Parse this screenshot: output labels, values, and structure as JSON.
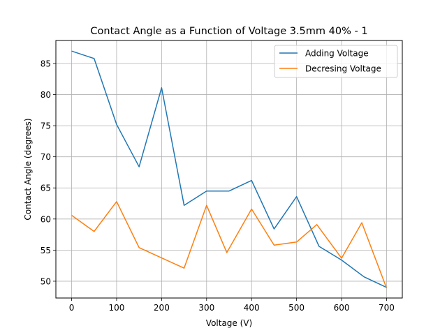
{
  "chart_data": {
    "type": "line",
    "title": "Contact Angle as a Function of Voltage 3.5mm 40% - 1",
    "xlabel": "Voltage (V)",
    "ylabel": "Contact Angle (degrees)",
    "xlim": [
      -35,
      735
    ],
    "ylim": [
      47.3,
      88.7
    ],
    "xticks": [
      0,
      100,
      200,
      300,
      400,
      500,
      600,
      700
    ],
    "yticks": [
      50,
      55,
      60,
      65,
      70,
      75,
      80,
      85
    ],
    "grid": true,
    "legend_position": "top-right",
    "series": [
      {
        "name": "Adding Voltage",
        "color": "#1f77b4",
        "x": [
          0,
          50,
          100,
          150,
          200,
          250,
          300,
          350,
          400,
          450,
          500,
          550,
          600,
          650,
          700
        ],
        "y": [
          87.0,
          85.8,
          75.2,
          68.4,
          81.1,
          62.2,
          64.5,
          64.5,
          66.2,
          58.4,
          63.6,
          55.6,
          53.4,
          50.7,
          49.0
        ]
      },
      {
        "name": "Decresing Voltage",
        "color": "#ff7f0e",
        "x": [
          0,
          50,
          100,
          150,
          250,
          300,
          345,
          400,
          450,
          500,
          545,
          600,
          645,
          700
        ],
        "y": [
          60.6,
          58.0,
          62.8,
          55.4,
          52.1,
          62.2,
          54.6,
          61.6,
          55.8,
          56.3,
          59.1,
          53.7,
          59.4,
          48.9
        ]
      }
    ]
  }
}
